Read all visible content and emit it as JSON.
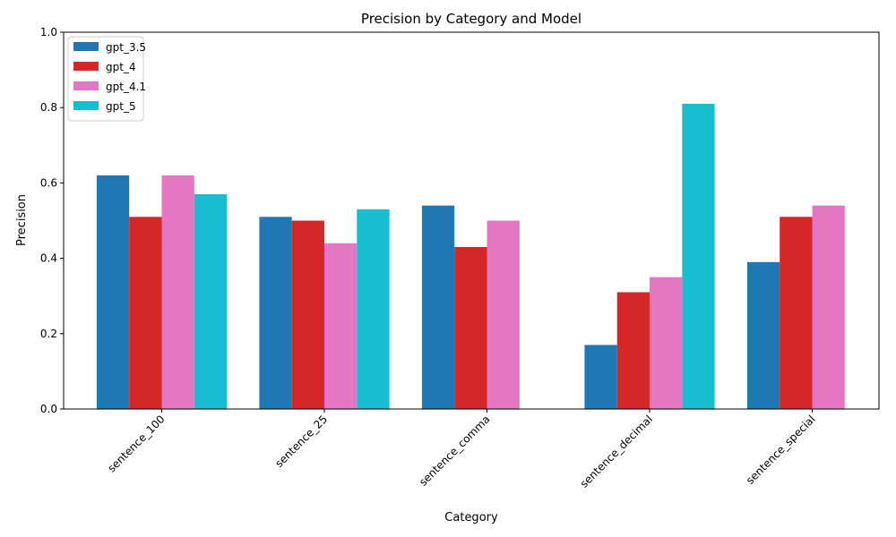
{
  "chart_data": {
    "type": "bar",
    "title": "Precision by Category and Model",
    "xlabel": "Category",
    "ylabel": "Precision",
    "ylim": [
      0,
      1.0
    ],
    "yticks": [
      "0.0",
      "0.2",
      "0.4",
      "0.6",
      "0.8",
      "1.0"
    ],
    "categories": [
      "sentence_100",
      "sentence_25",
      "sentence_comma",
      "sentence_decimal",
      "sentence_special"
    ],
    "series": [
      {
        "name": "gpt_3.5",
        "color": "#1f77b4",
        "values": [
          0.62,
          0.51,
          0.54,
          0.17,
          0.39
        ]
      },
      {
        "name": "gpt_4",
        "color": "#d62728",
        "values": [
          0.51,
          0.5,
          0.43,
          0.31,
          0.51
        ]
      },
      {
        "name": "gpt_4.1",
        "color": "#e377c2",
        "values": [
          0.62,
          0.44,
          0.5,
          0.35,
          0.54
        ]
      },
      {
        "name": "gpt_5",
        "color": "#17becf",
        "values": [
          0.57,
          0.53,
          null,
          0.81,
          null
        ]
      }
    ],
    "legend_position": "top-left",
    "grid": false
  }
}
